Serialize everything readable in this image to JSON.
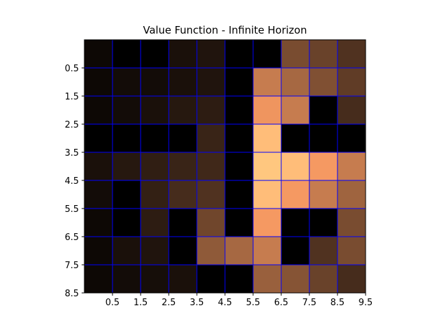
{
  "chart_data": {
    "type": "heatmap",
    "title": "Value Function - Infinite Horizon",
    "xlabel": "",
    "ylabel": "",
    "colormap": "copper",
    "grid": true,
    "grid_color": "#0000ff",
    "colors": {
      "low": "#000000",
      "high": "#ffc77f"
    },
    "value_range": [
      0,
      1
    ],
    "xlim": [
      -0.5,
      9.5
    ],
    "ylim": [
      8.5,
      -0.5
    ],
    "x_ticks": [
      0.5,
      1.5,
      2.5,
      3.5,
      4.5,
      5.5,
      6.5,
      7.5,
      8.5,
      9.5
    ],
    "x_tick_labels": [
      "0.5",
      "1.5",
      "2.5",
      "3.5",
      "4.5",
      "5.5",
      "6.5",
      "7.5",
      "8.5",
      "9.5"
    ],
    "y_ticks": [
      0.5,
      1.5,
      2.5,
      3.5,
      4.5,
      5.5,
      6.5,
      7.5,
      8.5
    ],
    "y_tick_labels": [
      "0.5",
      "1.5",
      "2.5",
      "3.5",
      "4.5",
      "5.5",
      "6.5",
      "7.5",
      "8.5"
    ],
    "values": [
      [
        0.04,
        0.0,
        0.0,
        0.08,
        0.1,
        0.0,
        0.0,
        0.38,
        0.33,
        0.25
      ],
      [
        0.04,
        0.06,
        0.06,
        0.08,
        0.1,
        0.0,
        0.62,
        0.52,
        0.4,
        0.3
      ],
      [
        0.04,
        0.06,
        0.08,
        0.12,
        0.14,
        0.0,
        0.75,
        0.62,
        0.0,
        0.22
      ],
      [
        0.0,
        0.0,
        0.0,
        0.0,
        0.18,
        0.0,
        0.95,
        0.0,
        0.0,
        0.0
      ],
      [
        0.08,
        0.12,
        0.15,
        0.18,
        0.2,
        0.0,
        1.0,
        0.95,
        0.77,
        0.62
      ],
      [
        0.06,
        0.0,
        0.16,
        0.22,
        0.25,
        0.0,
        0.95,
        0.77,
        0.62,
        0.5
      ],
      [
        0.04,
        0.0,
        0.14,
        0.0,
        0.35,
        0.0,
        0.77,
        0.0,
        0.0,
        0.38
      ],
      [
        0.04,
        0.08,
        0.1,
        0.0,
        0.45,
        0.52,
        0.62,
        0.0,
        0.25,
        0.38
      ],
      [
        0.04,
        0.06,
        0.07,
        0.08,
        0.0,
        0.0,
        0.48,
        0.42,
        0.33,
        0.22
      ]
    ]
  }
}
